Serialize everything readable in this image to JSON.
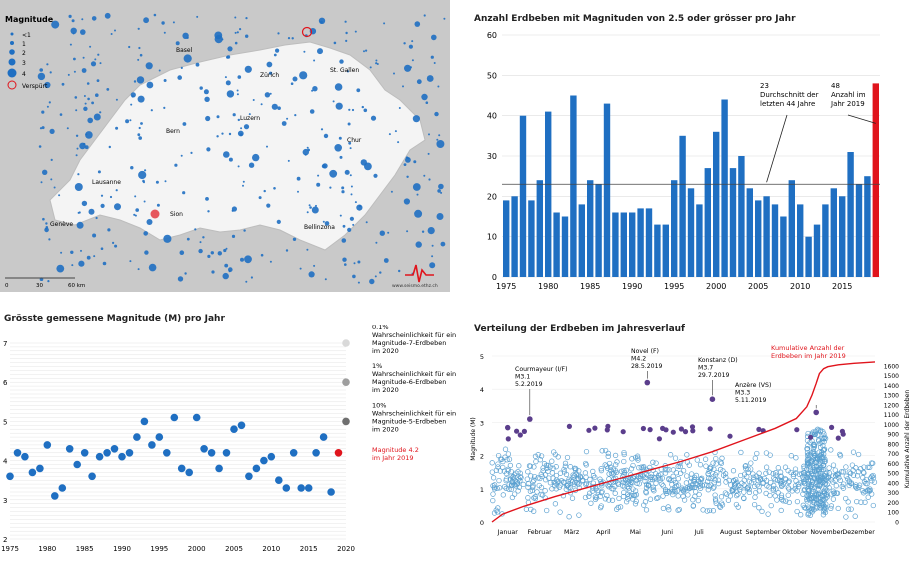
{
  "colors": {
    "quake_blue": "#1f6fc2",
    "highlight_red": "#e0141c",
    "dot_gray": "#7a7a7a",
    "purple": "#5b3e8c",
    "ring_blue": "#5aa0d0"
  },
  "map": {
    "legend_title": "Magnitude",
    "legend_items": [
      "<1",
      "1",
      "2",
      "3",
      "4"
    ],
    "legend_felt": "Verspürt",
    "cities": [
      "Basel",
      "Zürich",
      "St. Gallen",
      "Luzern",
      "Bern",
      "Chur",
      "Lausanne",
      "Genève",
      "Sion",
      "Bellinzona"
    ],
    "scale_labels": [
      "0",
      "30",
      "60 km"
    ],
    "credit": "www.seismo.ethz.ch"
  },
  "chart_data": [
    {
      "id": "annual_counts",
      "type": "bar",
      "title": "Anzahl Erdbeben mit Magnituden von 2.5 oder grösser pro Jahr",
      "x": [
        1975,
        1976,
        1977,
        1978,
        1979,
        1980,
        1981,
        1982,
        1983,
        1984,
        1985,
        1986,
        1987,
        1988,
        1989,
        1990,
        1991,
        1992,
        1993,
        1994,
        1995,
        1996,
        1997,
        1998,
        1999,
        2000,
        2001,
        2002,
        2003,
        2004,
        2005,
        2006,
        2007,
        2008,
        2009,
        2010,
        2011,
        2012,
        2013,
        2014,
        2015,
        2016,
        2017,
        2018,
        2019
      ],
      "values": [
        19,
        20,
        40,
        19,
        24,
        41,
        16,
        15,
        45,
        18,
        24,
        23,
        43,
        16,
        16,
        16,
        17,
        17,
        13,
        13,
        24,
        35,
        22,
        18,
        27,
        36,
        44,
        27,
        30,
        22,
        19,
        20,
        18,
        15,
        24,
        18,
        10,
        13,
        18,
        22,
        20,
        31,
        23,
        25,
        48
      ],
      "highlight_year": 2019,
      "ylim": [
        0,
        60
      ],
      "yticks": [
        0,
        10,
        20,
        30,
        40,
        50,
        60
      ],
      "xticks": [
        1975,
        1980,
        1985,
        1990,
        1995,
        2000,
        2005,
        2010,
        2015
      ],
      "average": 23,
      "annotations": {
        "average_label": [
          "23",
          "Durchschnitt der",
          "letzten 44 Jahre"
        ],
        "year_label": [
          "48",
          "Anzahl im",
          "Jahr 2019"
        ]
      }
    },
    {
      "id": "max_magnitude",
      "type": "scatter",
      "title": "Grösste gemessene Magnitude (M) pro Jahr",
      "x": [
        1975,
        1976,
        1977,
        1978,
        1979,
        1980,
        1981,
        1982,
        1983,
        1984,
        1985,
        1986,
        1987,
        1988,
        1989,
        1990,
        1991,
        1992,
        1993,
        1994,
        1995,
        1996,
        1997,
        1998,
        1999,
        2000,
        2001,
        2002,
        2003,
        2004,
        2005,
        2006,
        2007,
        2008,
        2009,
        2010,
        2011,
        2012,
        2013,
        2014,
        2015,
        2016,
        2017,
        2018,
        2019
      ],
      "values": [
        3.6,
        4.2,
        4.1,
        3.7,
        3.8,
        4.4,
        3.1,
        3.3,
        4.3,
        3.9,
        4.2,
        3.6,
        4.1,
        4.2,
        4.3,
        4.1,
        4.2,
        4.6,
        5.0,
        4.4,
        4.6,
        4.2,
        5.1,
        3.8,
        3.7,
        5.1,
        4.3,
        4.2,
        3.8,
        4.2,
        4.8,
        4.9,
        3.6,
        3.8,
        4.0,
        4.1,
        3.5,
        3.3,
        4.2,
        3.3,
        3.3,
        4.2,
        4.6,
        3.2,
        4.2
      ],
      "highlight_year": 2019,
      "ylim": [
        2,
        7
      ],
      "yticks": [
        2,
        3,
        4,
        5,
        6,
        7
      ],
      "xticks": [
        1975,
        1980,
        1985,
        1990,
        1995,
        2000,
        2005,
        2010,
        2015,
        2020
      ],
      "reference_markers": [
        {
          "magnitude": 7,
          "lines": [
            "0.1%",
            "Wahrscheinlichkeit für ein",
            "Magnitude-7-Erdbeben",
            "im 2020"
          ]
        },
        {
          "magnitude": 6,
          "lines": [
            "1%",
            "Wahrscheinlichkeit für ein",
            "Magnitude-6-Erdbeben",
            "im 2020"
          ]
        },
        {
          "magnitude": 5,
          "lines": [
            "10%",
            "Wahrscheinlichkeit für ein",
            "Magnitude-5-Erdbeben",
            "im 2020"
          ]
        }
      ],
      "highlight_label": [
        "Magnitude 4.2",
        "im Jahr 2019"
      ]
    },
    {
      "id": "annual_distribution",
      "type": "scatter",
      "title": "Verteilung der Erdbeben im Jahresverlauf",
      "ylabel_left": "Magnitude (M)",
      "ylabel_right": "Kumulative Anzahl der Erdbeben",
      "ylim_left": [
        0,
        5
      ],
      "yticks_left": [
        0,
        1,
        2,
        3,
        4,
        5
      ],
      "ylim_right": [
        0,
        1700
      ],
      "yticks_right": [
        0,
        100,
        200,
        300,
        400,
        500,
        600,
        700,
        800,
        900,
        1000,
        1100,
        1200,
        1300,
        1400,
        1500,
        1600
      ],
      "months": [
        "Januar",
        "Februar",
        "März",
        "April",
        "Mai",
        "Juni",
        "Juli",
        "August",
        "September",
        "Oktober",
        "November",
        "Dezember"
      ],
      "cumulative_label": [
        "Kumulative Anzahl der",
        "Erdbeben im Jahr 2019"
      ],
      "cumulative_curve": {
        "day": [
          0,
          10,
          30,
          60,
          90,
          120,
          150,
          180,
          210,
          240,
          270,
          290,
          300,
          305,
          309,
          312,
          316,
          320,
          330,
          345,
          365
        ],
        "count": [
          0,
          80,
          160,
          260,
          350,
          440,
          530,
          620,
          720,
          840,
          960,
          1060,
          1180,
          1300,
          1420,
          1520,
          1570,
          1590,
          1610,
          1625,
          1640
        ]
      },
      "events": [
        {
          "lines": [
            "Courmayeur (I/F)",
            "M3.1",
            "5.2.2019"
          ],
          "day": 36,
          "magnitude": 3.1
        },
        {
          "lines": [
            "Novel (F)",
            "M4.2",
            "28.5.2019"
          ],
          "day": 148,
          "magnitude": 4.2
        },
        {
          "lines": [
            "Konstanz (D)",
            "M3.7",
            "29.7.2019"
          ],
          "day": 210,
          "magnitude": 3.7
        },
        {
          "lines": [
            "Anzère (VS)",
            "M3.3",
            "5.11.2019"
          ],
          "day": 309,
          "magnitude": 3.3
        }
      ]
    }
  ]
}
